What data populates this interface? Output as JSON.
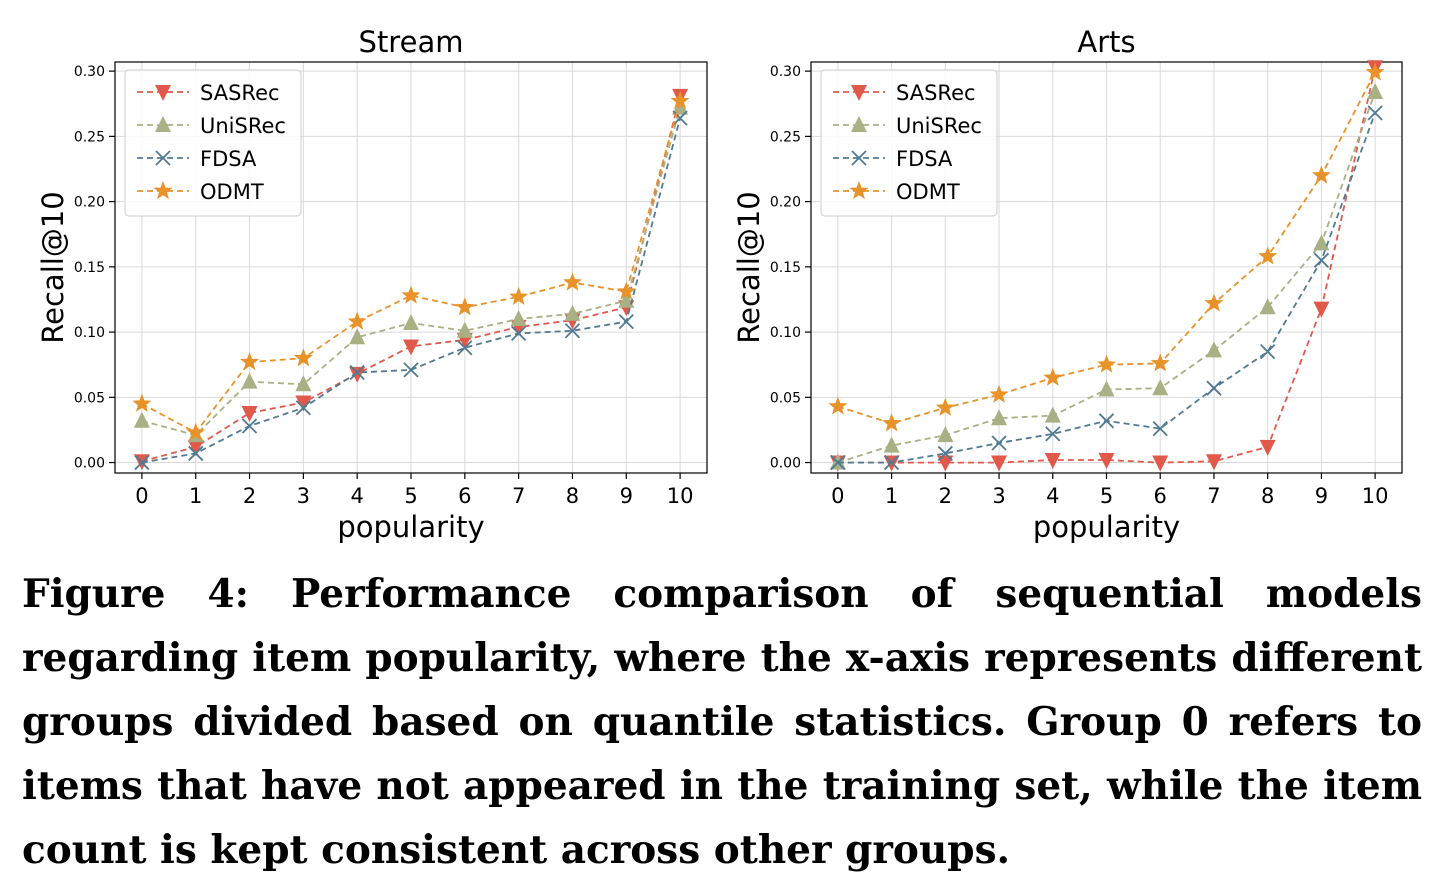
{
  "chart_data": [
    {
      "type": "line",
      "title": "Stream",
      "xlabel": "popularity",
      "ylabel": "Recall@10",
      "x": [
        0,
        1,
        2,
        3,
        4,
        5,
        6,
        7,
        8,
        9,
        10
      ],
      "xlim": [
        -0.5,
        10.5
      ],
      "ylim": [
        -0.008,
        0.307
      ],
      "yticks": [
        "0.00",
        "0.05",
        "0.10",
        "0.15",
        "0.20",
        "0.25",
        "0.30"
      ],
      "grid": true,
      "legend": "top-left",
      "series": [
        {
          "name": "SASRec",
          "marker": "triangle-down",
          "color": "#e0594b",
          "values": [
            0.001,
            0.012,
            0.038,
            0.046,
            0.068,
            0.089,
            0.094,
            0.104,
            0.109,
            0.119,
            0.281
          ]
        },
        {
          "name": "UniSRec",
          "marker": "triangle-up",
          "color": "#a8b084",
          "values": [
            0.032,
            0.021,
            0.062,
            0.06,
            0.096,
            0.107,
            0.101,
            0.11,
            0.114,
            0.124,
            0.272
          ]
        },
        {
          "name": "FDSA",
          "marker": "x",
          "color": "#517a92",
          "values": [
            0.0,
            0.007,
            0.028,
            0.042,
            0.069,
            0.071,
            0.088,
            0.099,
            0.101,
            0.108,
            0.264
          ]
        },
        {
          "name": "ODMT",
          "marker": "star",
          "color": "#e8932a",
          "values": [
            0.045,
            0.023,
            0.077,
            0.08,
            0.108,
            0.128,
            0.119,
            0.127,
            0.138,
            0.131,
            0.277
          ]
        }
      ]
    },
    {
      "type": "line",
      "title": "Arts",
      "xlabel": "popularity",
      "ylabel": "Recall@10",
      "x": [
        0,
        1,
        2,
        3,
        4,
        5,
        6,
        7,
        8,
        9,
        10
      ],
      "xlim": [
        -0.5,
        10.5
      ],
      "ylim": [
        -0.008,
        0.307
      ],
      "yticks": [
        "0.00",
        "0.05",
        "0.10",
        "0.15",
        "0.20",
        "0.25",
        "0.30"
      ],
      "grid": true,
      "legend": "top-left",
      "series": [
        {
          "name": "SASRec",
          "marker": "triangle-down",
          "color": "#e0594b",
          "values": [
            0.0,
            0.0,
            0.0,
            0.0,
            0.002,
            0.002,
            0.0,
            0.001,
            0.012,
            0.118,
            0.303
          ]
        },
        {
          "name": "UniSRec",
          "marker": "triangle-up",
          "color": "#a8b084",
          "values": [
            0.0,
            0.013,
            0.021,
            0.034,
            0.036,
            0.056,
            0.057,
            0.086,
            0.119,
            0.168,
            0.284
          ]
        },
        {
          "name": "FDSA",
          "marker": "x",
          "color": "#517a92",
          "values": [
            0.0,
            0.0,
            0.007,
            0.015,
            0.022,
            0.032,
            0.026,
            0.057,
            0.085,
            0.155,
            0.268
          ]
        },
        {
          "name": "ODMT",
          "marker": "star",
          "color": "#e8932a",
          "values": [
            0.043,
            0.03,
            0.042,
            0.052,
            0.065,
            0.075,
            0.076,
            0.122,
            0.158,
            0.22,
            0.299
          ]
        }
      ]
    }
  ],
  "caption": "Figure 4: Performance comparison of sequential models regarding item popularity, where the x-axis represents different groups divided based on quantile statistics. Group 0 refers to items that have not appeared in the training set, while the item count is kept consistent across other groups."
}
